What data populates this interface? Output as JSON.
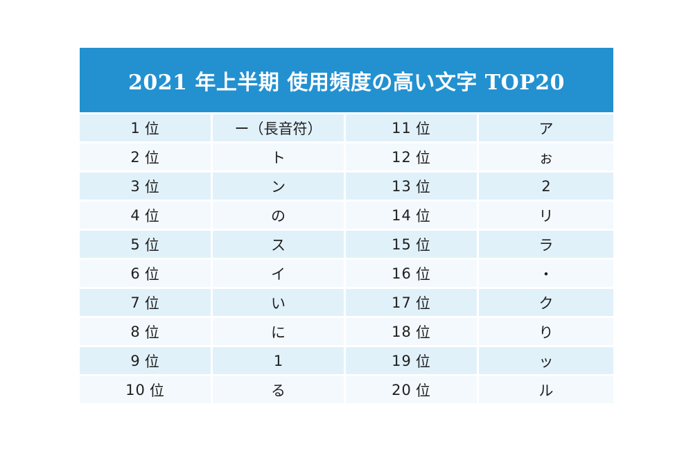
{
  "title": "2021 年上半期 使用頻度の高い文字 TOP20",
  "colors": {
    "header_bg": "#2391d0",
    "row_odd_bg": "#e1f1fa",
    "row_even_bg": "#f3f9fd",
    "header_text": "#ffffff"
  },
  "rows": [
    {
      "rank_left": "1",
      "char_left": "ー（長音符）",
      "rank_right": "11",
      "char_right": "ア"
    },
    {
      "rank_left": "2",
      "char_left": "ト",
      "rank_right": "12",
      "char_right": "ぉ"
    },
    {
      "rank_left": "3",
      "char_left": "ン",
      "rank_right": "13",
      "char_right": "2"
    },
    {
      "rank_left": "4",
      "char_left": "の",
      "rank_right": "14",
      "char_right": "リ"
    },
    {
      "rank_left": "5",
      "char_left": "ス",
      "rank_right": "15",
      "char_right": "ラ"
    },
    {
      "rank_left": "6",
      "char_left": "イ",
      "rank_right": "16",
      "char_right": "・"
    },
    {
      "rank_left": "7",
      "char_left": "い",
      "rank_right": "17",
      "char_right": "ク"
    },
    {
      "rank_left": "8",
      "char_left": "に",
      "rank_right": "18",
      "char_right": "り"
    },
    {
      "rank_left": "9",
      "char_left": "1",
      "rank_right": "19",
      "char_right": "ッ"
    },
    {
      "rank_left": "10",
      "char_left": "る",
      "rank_right": "20",
      "char_right": "ル"
    }
  ],
  "rank_suffix": "位"
}
